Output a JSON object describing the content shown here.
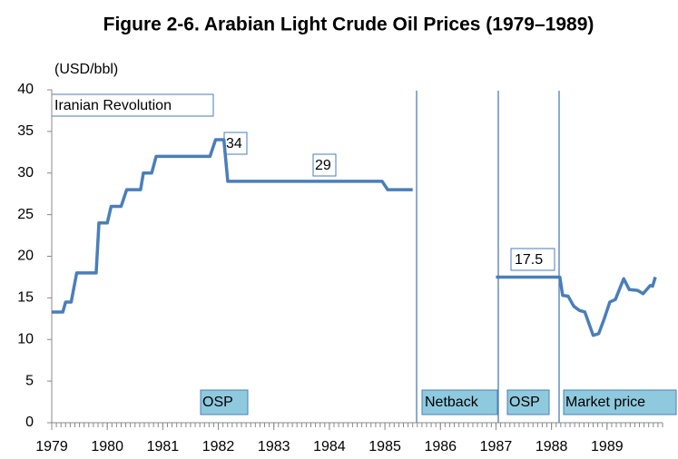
{
  "chart_data": {
    "type": "line",
    "title": "Figure 2-6. Arabian Light Crude Oil Prices (1979–1989)",
    "ylabel": "(USD/bbl)",
    "xlim": [
      1979,
      1990
    ],
    "xticks": [
      1979,
      1980,
      1981,
      1982,
      1983,
      1984,
      1985,
      1986,
      1987,
      1988,
      1989
    ],
    "ylim": [
      0,
      40
    ],
    "yticks": [
      0,
      5,
      10,
      15,
      20,
      25,
      30,
      35,
      40
    ],
    "series": [
      {
        "name": "Arabian Light",
        "color": "#4a7ebb",
        "x": [
          1979.0,
          1979.2,
          1979.25,
          1979.35,
          1979.45,
          1979.8,
          1979.85,
          1980.0,
          1980.07,
          1980.25,
          1980.35,
          1980.6,
          1980.65,
          1980.8,
          1980.88,
          1981.85,
          1981.95,
          1982.1,
          1982.17,
          1984.95,
          1985.05,
          1985.5,
          1986.3,
          1987.0,
          1988.15,
          1988.2,
          1988.3,
          1988.4,
          1988.5,
          1988.6,
          1988.75,
          1988.85,
          1988.95,
          1989.05,
          1989.15,
          1989.3,
          1989.4,
          1989.55,
          1989.65,
          1989.78,
          1989.82,
          1989.87
        ],
        "values": [
          13.3,
          13.3,
          14.5,
          14.5,
          18,
          18,
          24,
          24,
          26,
          26,
          28,
          28,
          30,
          30,
          32,
          32,
          34,
          34,
          29,
          29,
          28,
          28,
          null,
          17.5,
          17.5,
          15.3,
          15.2,
          14,
          13.5,
          13.3,
          10.5,
          10.7,
          12.5,
          14.5,
          14.8,
          17.3,
          16,
          15.9,
          15.5,
          16.5,
          16.4,
          17.5
        ]
      }
    ],
    "annotations": {
      "event": "Iranian Revolution",
      "peak": "34",
      "osp_price": "29",
      "osp_1987": "17.5",
      "periods": [
        "OSP",
        "Netback",
        "OSP",
        "Market price"
      ]
    }
  }
}
